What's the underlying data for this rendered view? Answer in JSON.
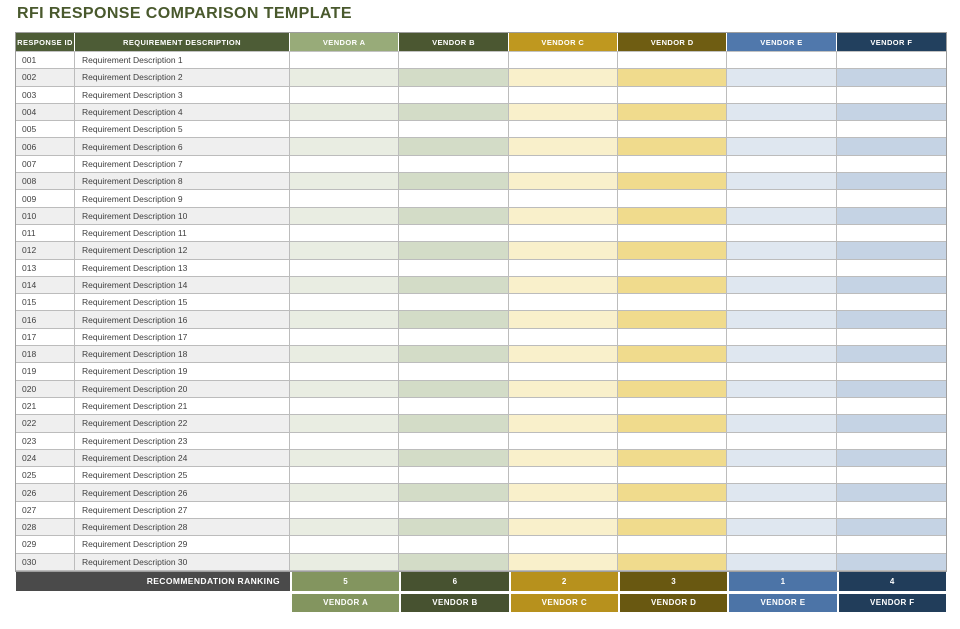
{
  "page": {
    "title": "RFI RESPONSE COMPARISON TEMPLATE"
  },
  "table": {
    "headers": {
      "response_id": "RESPONSE ID",
      "requirement_description": "REQUIREMENT DESCRIPTION"
    },
    "ranking_label": "RECOMMENDATION RANKING",
    "rows": [
      {
        "id": "001",
        "description": "Requirement Description 1"
      },
      {
        "id": "002",
        "description": "Requirement Description 2"
      },
      {
        "id": "003",
        "description": "Requirement Description 3"
      },
      {
        "id": "004",
        "description": "Requirement Description 4"
      },
      {
        "id": "005",
        "description": "Requirement Description 5"
      },
      {
        "id": "006",
        "description": "Requirement Description 6"
      },
      {
        "id": "007",
        "description": "Requirement Description 7"
      },
      {
        "id": "008",
        "description": "Requirement Description 8"
      },
      {
        "id": "009",
        "description": "Requirement Description 9"
      },
      {
        "id": "010",
        "description": "Requirement Description 10"
      },
      {
        "id": "011",
        "description": "Requirement Description 11"
      },
      {
        "id": "012",
        "description": "Requirement Description 12"
      },
      {
        "id": "013",
        "description": "Requirement Description 13"
      },
      {
        "id": "014",
        "description": "Requirement Description 14"
      },
      {
        "id": "015",
        "description": "Requirement Description 15"
      },
      {
        "id": "016",
        "description": "Requirement Description 16"
      },
      {
        "id": "017",
        "description": "Requirement Description 17"
      },
      {
        "id": "018",
        "description": "Requirement Description 18"
      },
      {
        "id": "019",
        "description": "Requirement Description 19"
      },
      {
        "id": "020",
        "description": "Requirement Description 20"
      },
      {
        "id": "021",
        "description": "Requirement Description 21"
      },
      {
        "id": "022",
        "description": "Requirement Description 22"
      },
      {
        "id": "023",
        "description": "Requirement Description 23"
      },
      {
        "id": "024",
        "description": "Requirement Description 24"
      },
      {
        "id": "025",
        "description": "Requirement Description 25"
      },
      {
        "id": "026",
        "description": "Requirement Description 26"
      },
      {
        "id": "027",
        "description": "Requirement Description 27"
      },
      {
        "id": "028",
        "description": "Requirement Description 28"
      },
      {
        "id": "029",
        "description": "Requirement Description 29"
      },
      {
        "id": "030",
        "description": "Requirement Description 30"
      }
    ]
  },
  "vendors": [
    {
      "name": "VENDOR A",
      "ranking": "5",
      "header_color": "#98AB79",
      "deep_color": "#83955F",
      "tint_color": "#E9EDE2"
    },
    {
      "name": "VENDOR B",
      "ranking": "6",
      "header_color": "#4B5731",
      "deep_color": "#475230",
      "tint_color": "#D3DCC7"
    },
    {
      "name": "VENDOR C",
      "ranking": "2",
      "header_color": "#BF981F",
      "deep_color": "#B7911D",
      "tint_color": "#F9F0CB"
    },
    {
      "name": "VENDOR D",
      "ranking": "3",
      "header_color": "#6F5D12",
      "deep_color": "#695811",
      "tint_color": "#F0DB8D"
    },
    {
      "name": "VENDOR E",
      "ranking": "1",
      "header_color": "#5078AC",
      "deep_color": "#4C74A7",
      "tint_color": "#DFE7F0"
    },
    {
      "name": "VENDOR F",
      "ranking": "4",
      "header_color": "#22405E",
      "deep_color": "#213D5A",
      "tint_color": "#C5D3E4"
    }
  ],
  "colors": {
    "title_text": "#49592D",
    "header_green": "#4D5C36",
    "alt_row_gray": "#EFEFEF",
    "rank_label_bg": "#4A4A4A",
    "grid_line": "#BCBCBC",
    "body_text": "#3F3F3F"
  }
}
